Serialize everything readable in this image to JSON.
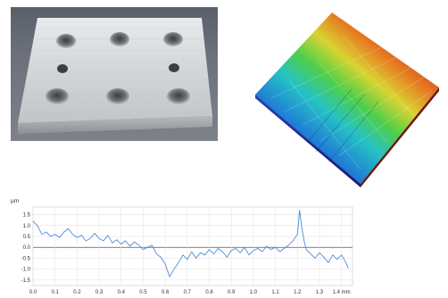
{
  "figure": {
    "photo": {
      "content": "machined aluminium plate with six counterbored holes"
    },
    "surface_map": {
      "content": "3D surface topography height map"
    }
  },
  "chart_data": {
    "type": "line",
    "y_unit_label": "µm",
    "x_unit_label": "mm",
    "yticks": [
      "1.5",
      "1.0",
      "0.5",
      "0.0",
      "-0.5",
      "-1.0",
      "-1.5"
    ],
    "ytick_values": [
      1.5,
      1.0,
      0.5,
      0.0,
      -0.5,
      -1.0,
      -1.5
    ],
    "xticks": [
      "0.0",
      "0.1",
      "0.2",
      "0.3",
      "0.4",
      "0.5",
      "0.6",
      "0.7",
      "0.8",
      "0.9",
      "1.0",
      "1.1",
      "1.2",
      "1.3",
      "1.4 mm"
    ],
    "xtick_values": [
      0.0,
      0.1,
      0.2,
      0.3,
      0.4,
      0.5,
      0.6,
      0.7,
      0.8,
      0.9,
      1.0,
      1.1,
      1.2,
      1.3,
      1.4
    ],
    "xlim": [
      0.0,
      1.45
    ],
    "ylim": [
      -1.75,
      1.85
    ],
    "grid": true,
    "zero_line": true,
    "series": [
      {
        "color": "#4a8fd6",
        "x": [
          0.0,
          0.02,
          0.04,
          0.06,
          0.08,
          0.1,
          0.12,
          0.14,
          0.16,
          0.18,
          0.2,
          0.22,
          0.24,
          0.26,
          0.28,
          0.3,
          0.32,
          0.34,
          0.36,
          0.38,
          0.4,
          0.42,
          0.44,
          0.46,
          0.48,
          0.5,
          0.52,
          0.54,
          0.56,
          0.58,
          0.6,
          0.62,
          0.64,
          0.66,
          0.68,
          0.7,
          0.72,
          0.74,
          0.76,
          0.78,
          0.8,
          0.82,
          0.84,
          0.86,
          0.88,
          0.9,
          0.92,
          0.94,
          0.96,
          0.98,
          1.0,
          1.02,
          1.04,
          1.06,
          1.08,
          1.1,
          1.12,
          1.14,
          1.16,
          1.18,
          1.2,
          1.21,
          1.22,
          1.23,
          1.24,
          1.26,
          1.28,
          1.3,
          1.32,
          1.34,
          1.36,
          1.38,
          1.4,
          1.42,
          1.43
        ],
        "y": [
          1.2,
          1.0,
          0.6,
          0.7,
          0.5,
          0.6,
          0.45,
          0.7,
          0.85,
          0.6,
          0.45,
          0.55,
          0.3,
          0.4,
          0.65,
          0.4,
          0.3,
          0.55,
          0.2,
          0.35,
          0.15,
          0.3,
          0.05,
          0.25,
          0.1,
          -0.1,
          0.0,
          0.1,
          -0.3,
          -0.45,
          -0.75,
          -1.35,
          -1.0,
          -0.7,
          -0.35,
          -0.55,
          -0.2,
          -0.5,
          -0.25,
          -0.35,
          -0.1,
          -0.3,
          -0.05,
          -0.2,
          -0.45,
          -0.15,
          -0.05,
          -0.25,
          0.0,
          -0.35,
          -0.15,
          -0.05,
          -0.2,
          0.05,
          -0.1,
          0.0,
          -0.2,
          -0.05,
          0.1,
          0.3,
          0.6,
          1.7,
          0.9,
          0.3,
          -0.1,
          -0.3,
          -0.5,
          -0.25,
          -0.45,
          -0.7,
          -0.35,
          -0.55,
          -0.35,
          -0.7,
          -0.95
        ]
      }
    ]
  }
}
